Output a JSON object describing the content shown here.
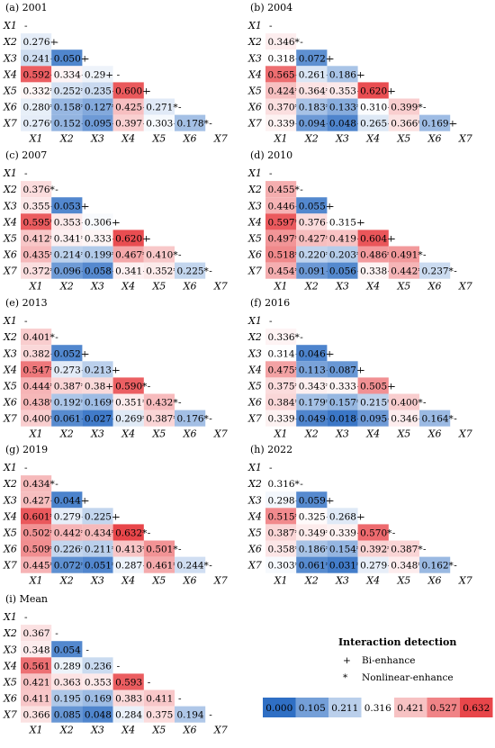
{
  "chart_data": {
    "type": "heatmap",
    "row_labels": [
      "X1",
      "X2",
      "X3",
      "X4",
      "X5",
      "X6",
      "X7"
    ],
    "col_labels": [
      "X1",
      "X2",
      "X3",
      "X4",
      "X5",
      "X6",
      "X7"
    ],
    "color_scale": {
      "min": 0.0,
      "max": 0.632,
      "low_color": "#2f6fc4",
      "mid_color": "#ffffff",
      "high_color": "#e8464a",
      "mid_value": 0.316
    },
    "panels": [
      {
        "title": "(a) 2001",
        "rows": [
          [
            "-"
          ],
          [
            "0.276+",
            "-"
          ],
          [
            "0.241+",
            "0.050+",
            "-"
          ],
          [
            "0.592+",
            "0.334+",
            "0.29+",
            "-"
          ],
          [
            "0.332*",
            "0.252*",
            "0.235+",
            "0.600+",
            "-"
          ],
          [
            "0.280*",
            "0.158*",
            "0.127*",
            "0.425+",
            "0.271*",
            "-"
          ],
          [
            "0.276*",
            "0.152+",
            "0.095+",
            "0.397+",
            "0.303+",
            "0.178*",
            "-"
          ]
        ]
      },
      {
        "title": "(b) 2004",
        "rows": [
          [
            "-"
          ],
          [
            "0.346*",
            "-"
          ],
          [
            "0.318+",
            "0.072+",
            "-"
          ],
          [
            "0.565+",
            "0.261+",
            "0.186+",
            "-"
          ],
          [
            "0.424*",
            "0.364*",
            "0.353+",
            "0.620+",
            "-"
          ],
          [
            "0.370*",
            "0.183*",
            "0.133*",
            "0.310+",
            "0.399*",
            "-"
          ],
          [
            "0.339+",
            "0.094+",
            "0.048+",
            "0.265+",
            "0.366*",
            "0.169+",
            "-"
          ]
        ]
      },
      {
        "title": "(c) 2007",
        "rows": [
          [
            "-"
          ],
          [
            "0.376*",
            "-"
          ],
          [
            "0.355+",
            "0.053+",
            "-"
          ],
          [
            "0.595*",
            "0.353+",
            "0.306+",
            "-"
          ],
          [
            "0.412*",
            "0.341*",
            "0.333+",
            "0.620+",
            "-"
          ],
          [
            "0.435*",
            "0.214*",
            "0.199*",
            "0.467*",
            "0.410*",
            "-"
          ],
          [
            "0.372*",
            "0.096+",
            "0.058+",
            "0.341+",
            "0.352*",
            "0.225*",
            "-"
          ]
        ]
      },
      {
        "title": "(d) 2010",
        "rows": [
          [
            "-"
          ],
          [
            "0.455*",
            "-"
          ],
          [
            "0.446+",
            "0.055+",
            "-"
          ],
          [
            "0.597*",
            "0.376+",
            "0.315+",
            "-"
          ],
          [
            "0.497*",
            "0.427*",
            "0.419+",
            "0.604+",
            "-"
          ],
          [
            "0.518*",
            "0.220*",
            "0.203*",
            "0.486*",
            "0.491*",
            "-"
          ],
          [
            "0.454*",
            "0.091+",
            "0.056+",
            "0.338+",
            "0.442*",
            "0.237*",
            "-"
          ]
        ]
      },
      {
        "title": "(e) 2013",
        "rows": [
          [
            "-"
          ],
          [
            "0.401*",
            "-"
          ],
          [
            "0.382+",
            "0.052+",
            "-"
          ],
          [
            "0.547*",
            "0.273+",
            "0.213+",
            "-"
          ],
          [
            "0.444*",
            "0.387*",
            "0.38+",
            "0.590*",
            "-"
          ],
          [
            "0.438*",
            "0.192*",
            "0.169*",
            "0.351*",
            "0.432*",
            "-"
          ],
          [
            "0.400*",
            "0.061+",
            "0.027+",
            "0.269*",
            "0.387*",
            "0.176*",
            "-"
          ]
        ]
      },
      {
        "title": "(f) 2016",
        "rows": [
          [
            "-"
          ],
          [
            "0.336*",
            "-"
          ],
          [
            "0.314+",
            "0.046+",
            "-"
          ],
          [
            "0.475*",
            "0.113+",
            "0.087+",
            "-"
          ],
          [
            "0.375*",
            "0.343*",
            "0.333+",
            "0.505+",
            "-"
          ],
          [
            "0.384*",
            "0.179*",
            "0.157*",
            "0.215*",
            "0.400*",
            "-"
          ],
          [
            "0.339+",
            "0.049+",
            "0.018+",
            "0.095+",
            "0.346+",
            "0.164*",
            "-"
          ]
        ]
      },
      {
        "title": "(g) 2019",
        "rows": [
          [
            "-"
          ],
          [
            "0.434*",
            "-"
          ],
          [
            "0.427+",
            "0.044+",
            "-"
          ],
          [
            "0.601*",
            "0.279+",
            "0.225+",
            "-"
          ],
          [
            "0.502*",
            "0.442*",
            "0.434*",
            "0.632*",
            "-"
          ],
          [
            "0.509*",
            "0.226*",
            "0.211*",
            "0.413*",
            "0.501*",
            "-"
          ],
          [
            "0.445*",
            "0.072*",
            "0.051*",
            "0.287+",
            "0.461*",
            "0.244*",
            "-"
          ]
        ]
      },
      {
        "title": "(h) 2022",
        "rows": [
          [
            "-"
          ],
          [
            "0.316*",
            "-"
          ],
          [
            "0.298+",
            "0.059+",
            "-"
          ],
          [
            "0.515*",
            "0.325+",
            "0.268+",
            "-"
          ],
          [
            "0.387*",
            "0.349*",
            "0.339+",
            "0.570*",
            "-"
          ],
          [
            "0.358*",
            "0.186*",
            "0.154*",
            "0.392*",
            "0.387*",
            "-"
          ],
          [
            "0.303*",
            "0.061*",
            "0.031*",
            "0.279+",
            "0.348*",
            "0.162*",
            "-"
          ]
        ]
      },
      {
        "title": "(i) Mean",
        "rows": [
          [
            "-"
          ],
          [
            "0.367",
            "-"
          ],
          [
            "0.348",
            "0.054",
            "-"
          ],
          [
            "0.561",
            "0.289",
            "0.236",
            "-"
          ],
          [
            "0.421",
            "0.363",
            "0.353",
            "0.593",
            "-"
          ],
          [
            "0.411",
            "0.195",
            "0.169",
            "0.383",
            "0.411",
            "-"
          ],
          [
            "0.366",
            "0.085",
            "0.048",
            "0.284",
            "0.375",
            "0.194",
            "-"
          ]
        ]
      }
    ],
    "legend": {
      "title": "Interaction detection",
      "items": [
        {
          "symbol": "+",
          "label": "Bi-enhance"
        },
        {
          "symbol": "*",
          "label": "Nonlinear-enhance"
        }
      ],
      "colorbar_ticks": [
        "0.000",
        "0.105",
        "0.211",
        "0.316",
        "0.421",
        "0.527",
        "0.632"
      ]
    }
  }
}
